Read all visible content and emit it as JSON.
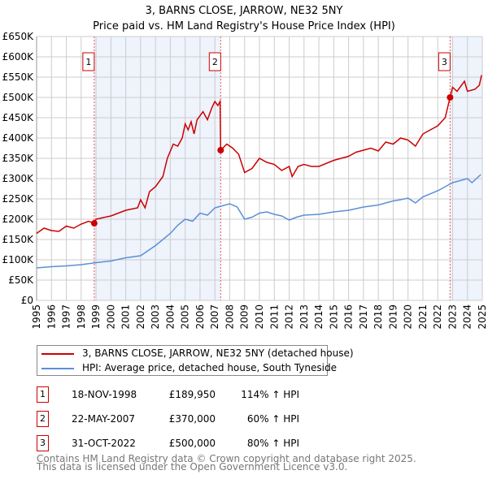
{
  "chart_data": {
    "type": "line",
    "title": "3, BARNS CLOSE, JARROW, NE32 5NY",
    "subtitle": "Price paid vs. HM Land Registry's House Price Index (HPI)",
    "xlim": [
      1995,
      2025
    ],
    "ylim": [
      0,
      650000
    ],
    "grid": true,
    "y_ticks": [
      "£0",
      "£50K",
      "£100K",
      "£150K",
      "£200K",
      "£250K",
      "£300K",
      "£350K",
      "£400K",
      "£450K",
      "£500K",
      "£550K",
      "£600K",
      "£650K"
    ],
    "x_ticks": [
      "1995",
      "1996",
      "1997",
      "1998",
      "1999",
      "2000",
      "2001",
      "2002",
      "2003",
      "2004",
      "2005",
      "2006",
      "2007",
      "2008",
      "2009",
      "2010",
      "2011",
      "2012",
      "2013",
      "2014",
      "2015",
      "2016",
      "2017",
      "2018",
      "2019",
      "2020",
      "2021",
      "2022",
      "2023",
      "2024",
      "2025"
    ],
    "shaded_ranges": [
      [
        1998.88,
        2007.39
      ],
      [
        2022.83,
        2025
      ]
    ],
    "series": [
      {
        "name": "3, BARNS CLOSE, JARROW, NE32 5NY (detached house)",
        "color": "#cc0000",
        "x": [
          1995,
          1995.5,
          1996,
          1996.5,
          1997,
          1997.5,
          1998,
          1998.5,
          1998.88,
          1999,
          2000,
          2001,
          2001.8,
          2002,
          2002.3,
          2002.6,
          2003,
          2003.5,
          2003.8,
          2004.2,
          2004.5,
          2004.8,
          2005,
          2005.2,
          2005.4,
          2005.6,
          2005.8,
          2006.2,
          2006.5,
          2006.8,
          2007,
          2007.2,
          2007.35,
          2007.39,
          2007.8,
          2008.2,
          2008.6,
          2009,
          2009.5,
          2010,
          2010.5,
          2011,
          2011.5,
          2012,
          2012.2,
          2012.6,
          2013,
          2013.5,
          2014,
          2015,
          2016,
          2016.5,
          2017,
          2017.5,
          2018,
          2018.5,
          2019,
          2019.5,
          2020,
          2020.5,
          2021,
          2021.5,
          2022,
          2022.5,
          2022.83,
          2023,
          2023.3,
          2023.8,
          2024,
          2024.5,
          2024.8,
          2024.95
        ],
        "y": [
          165,
          178,
          172,
          170,
          183,
          178,
          188,
          195,
          190,
          200,
          208,
          222,
          228,
          248,
          228,
          268,
          280,
          305,
          350,
          385,
          380,
          400,
          435,
          420,
          440,
          410,
          445,
          465,
          445,
          475,
          490,
          480,
          490,
          370,
          385,
          375,
          360,
          315,
          325,
          350,
          340,
          335,
          320,
          330,
          305,
          330,
          335,
          330,
          330,
          345,
          355,
          365,
          370,
          375,
          368,
          390,
          385,
          400,
          395,
          380,
          410,
          420,
          430,
          450,
          500,
          525,
          515,
          540,
          515,
          520,
          530,
          555
        ]
      },
      {
        "name": "HPI: Average price, detached house, South Tyneside",
        "color": "#5b8fd6",
        "x": [
          1995,
          1996,
          1997,
          1998,
          1999,
          2000,
          2001,
          2002,
          2003,
          2004,
          2004.5,
          2005,
          2005.5,
          2006,
          2006.5,
          2007,
          2007.5,
          2008,
          2008.5,
          2009,
          2009.5,
          2010,
          2010.5,
          2011,
          2011.5,
          2012,
          2012.5,
          2013,
          2014,
          2015,
          2016,
          2017,
          2018,
          2019,
          2019.5,
          2020,
          2020.5,
          2021,
          2022,
          2022.5,
          2023,
          2023.5,
          2024,
          2024.3,
          2024.9
        ],
        "y": [
          80,
          83,
          85,
          88,
          93,
          97,
          105,
          110,
          135,
          165,
          185,
          200,
          195,
          215,
          210,
          228,
          233,
          238,
          230,
          200,
          205,
          215,
          218,
          212,
          208,
          198,
          205,
          210,
          212,
          218,
          222,
          230,
          235,
          245,
          248,
          252,
          240,
          255,
          270,
          280,
          290,
          295,
          300,
          290,
          310
        ]
      }
    ],
    "y_units": "thousands GBP",
    "sales": [
      {
        "label": "1",
        "date": "18-NOV-1998",
        "price": "£189,950",
        "hpi": "114% ↑ HPI",
        "x": 1998.88,
        "y": 189.95
      },
      {
        "label": "2",
        "date": "22-MAY-2007",
        "price": "£370,000",
        "hpi": "60% ↑ HPI",
        "x": 2007.39,
        "y": 370
      },
      {
        "label": "3",
        "date": "31-OCT-2022",
        "price": "£500,000",
        "hpi": "80% ↑ HPI",
        "x": 2022.83,
        "y": 500
      }
    ],
    "legend_placement": "bottom"
  },
  "footer": {
    "line1": "Contains HM Land Registry data © Crown copyright and database right 2025.",
    "line2": "This data is licensed under the Open Government Licence v3.0."
  }
}
